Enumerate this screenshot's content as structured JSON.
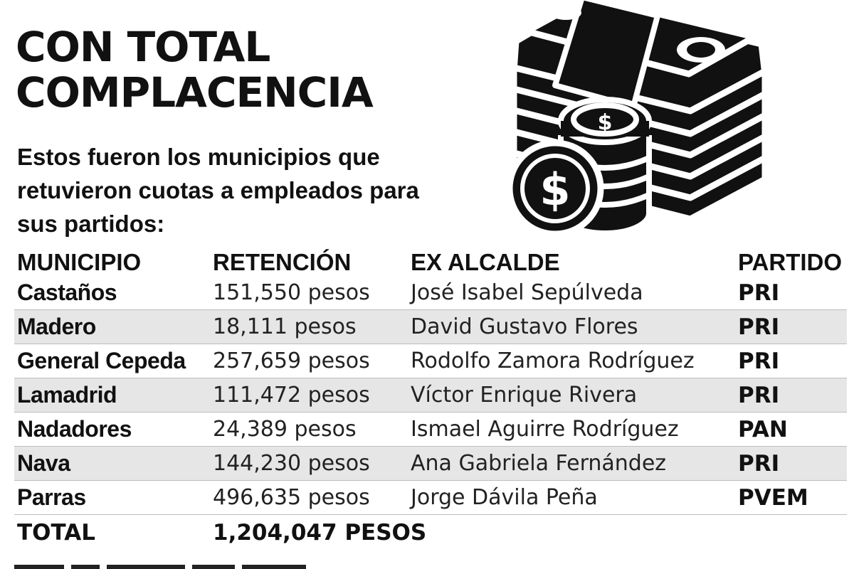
{
  "title": {
    "line1": "CON TOTAL",
    "line2": "COMPLACENCIA"
  },
  "subtitle": "Estos fueron los municipios que retuvieron cuotas a empleados para sus partidos:",
  "illustration_icon": "money-stack-and-coins-icon",
  "table": {
    "headers": [
      "MUNICIPIO",
      "RETENCIÓN",
      "EX ALCALDE",
      "PARTIDO"
    ],
    "rows": [
      [
        "Castaños",
        "151,550 pesos",
        "José Isabel Sepúlveda",
        "PRI"
      ],
      [
        "Madero",
        "18,111 pesos",
        "David Gustavo Flores",
        "PRI"
      ],
      [
        "General Cepeda",
        "257,659 pesos",
        "Rodolfo Zamora Rodríguez",
        "PRI"
      ],
      [
        "Lamadrid",
        "111,472 pesos",
        "Víctor Enrique Rivera",
        "PRI"
      ],
      [
        "Nadadores",
        "24,389 pesos",
        "Ismael Aguirre Rodríguez",
        "PAN"
      ],
      [
        "Nava",
        "144,230 pesos",
        "Ana Gabriela Fernández",
        "PRI"
      ],
      [
        "Parras",
        "496,635 pesos",
        "Jorge Dávila Peña",
        "PVEM"
      ]
    ],
    "total_label": "TOTAL",
    "total_value": "1,204,047 PESOS"
  },
  "colors": {
    "text": "#111111",
    "zebra": "#e6e6e6",
    "background": "#ffffff"
  }
}
